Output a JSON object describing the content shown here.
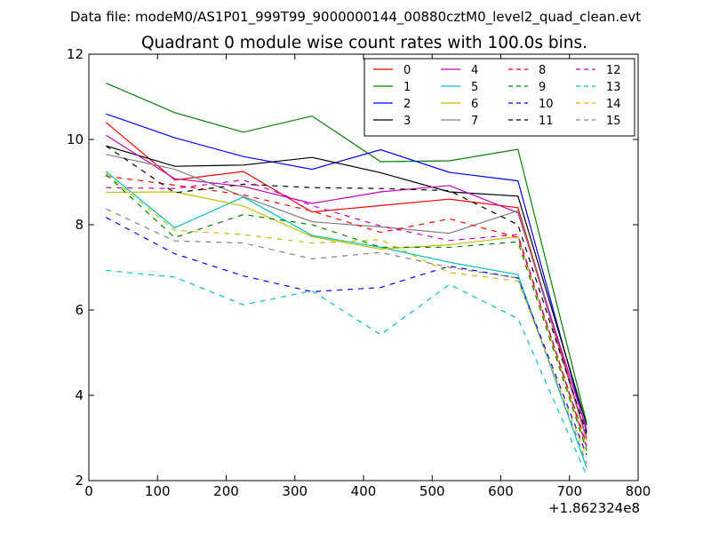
{
  "chart_data": {
    "type": "line",
    "suptitle": "Data file: modeM0/AS1P01_999T99_9000000144_00880cztM0_level2_quad_clean.evt",
    "title": "Quadrant 0 module wise count rates with 100.0s bins.",
    "xlabel": "",
    "ylabel": "",
    "x_offset_label": "+1.862324e8",
    "xlim": [
      0,
      800
    ],
    "ylim": [
      2,
      12
    ],
    "xticks": [
      0,
      100,
      200,
      300,
      400,
      500,
      600,
      700,
      800
    ],
    "yticks": [
      2,
      4,
      6,
      8,
      10,
      12
    ],
    "grid": false,
    "legend_position": "top-right",
    "x": [
      25,
      125,
      225,
      325,
      425,
      525,
      625,
      725
    ],
    "series": [
      {
        "name": "0",
        "color": "#ff0000",
        "dash": "solid",
        "values": [
          10.4,
          9.05,
          9.25,
          8.3,
          8.45,
          8.6,
          8.4,
          3.0
        ]
      },
      {
        "name": "1",
        "color": "#008000",
        "dash": "solid",
        "values": [
          11.32,
          10.63,
          10.17,
          10.55,
          9.48,
          9.5,
          9.77,
          3.35
        ]
      },
      {
        "name": "2",
        "color": "#0000ff",
        "dash": "solid",
        "values": [
          10.6,
          10.04,
          9.6,
          9.3,
          9.76,
          9.23,
          9.03,
          3.15
        ]
      },
      {
        "name": "3",
        "color": "#000000",
        "dash": "solid",
        "values": [
          9.85,
          9.37,
          9.4,
          9.58,
          9.22,
          8.77,
          8.67,
          3.3
        ]
      },
      {
        "name": "4",
        "color": "#c000c0",
        "dash": "solid",
        "values": [
          10.1,
          9.08,
          8.9,
          8.5,
          8.77,
          8.92,
          8.28,
          3.2
        ]
      },
      {
        "name": "5",
        "color": "#00bfbf",
        "dash": "solid",
        "values": [
          9.25,
          7.93,
          8.65,
          7.75,
          7.47,
          7.12,
          6.83,
          2.3
        ]
      },
      {
        "name": "6",
        "color": "#bfbf00",
        "dash": "solid",
        "values": [
          8.76,
          8.77,
          8.44,
          7.72,
          7.43,
          7.53,
          7.72,
          2.75
        ]
      },
      {
        "name": "7",
        "color": "#808080",
        "dash": "solid",
        "values": [
          9.65,
          9.3,
          8.66,
          8.07,
          7.95,
          7.8,
          8.33,
          2.95
        ]
      },
      {
        "name": "8",
        "color": "#ff0000",
        "dash": "dashed",
        "values": [
          9.14,
          8.93,
          8.7,
          8.32,
          7.82,
          8.14,
          7.7,
          2.85
        ]
      },
      {
        "name": "9",
        "color": "#008000",
        "dash": "dashed",
        "values": [
          9.18,
          7.7,
          8.24,
          8.0,
          7.47,
          7.47,
          7.6,
          2.7
        ]
      },
      {
        "name": "10",
        "color": "#0000ff",
        "dash": "dashed",
        "values": [
          8.17,
          7.32,
          6.8,
          6.43,
          6.53,
          7.03,
          6.75,
          2.6
        ]
      },
      {
        "name": "11",
        "color": "#000000",
        "dash": "dashed",
        "values": [
          9.85,
          8.75,
          8.95,
          8.87,
          8.85,
          8.8,
          8.0,
          3.1
        ]
      },
      {
        "name": "12",
        "color": "#c000c0",
        "dash": "dashed",
        "values": [
          8.87,
          8.85,
          9.05,
          8.45,
          7.97,
          7.63,
          7.77,
          2.8
        ]
      },
      {
        "name": "13",
        "color": "#00bfbf",
        "dash": "dashed",
        "values": [
          6.93,
          6.77,
          6.12,
          6.45,
          5.42,
          6.6,
          5.8,
          2.12
        ]
      },
      {
        "name": "14",
        "color": "#bfbf00",
        "dash": "dashed",
        "values": [
          9.2,
          7.87,
          7.77,
          7.57,
          7.65,
          6.88,
          6.68,
          2.55
        ]
      },
      {
        "name": "15",
        "color": "#808080",
        "dash": "dashed",
        "values": [
          8.37,
          7.62,
          7.57,
          7.2,
          7.35,
          7.0,
          6.75,
          2.4
        ]
      }
    ]
  }
}
